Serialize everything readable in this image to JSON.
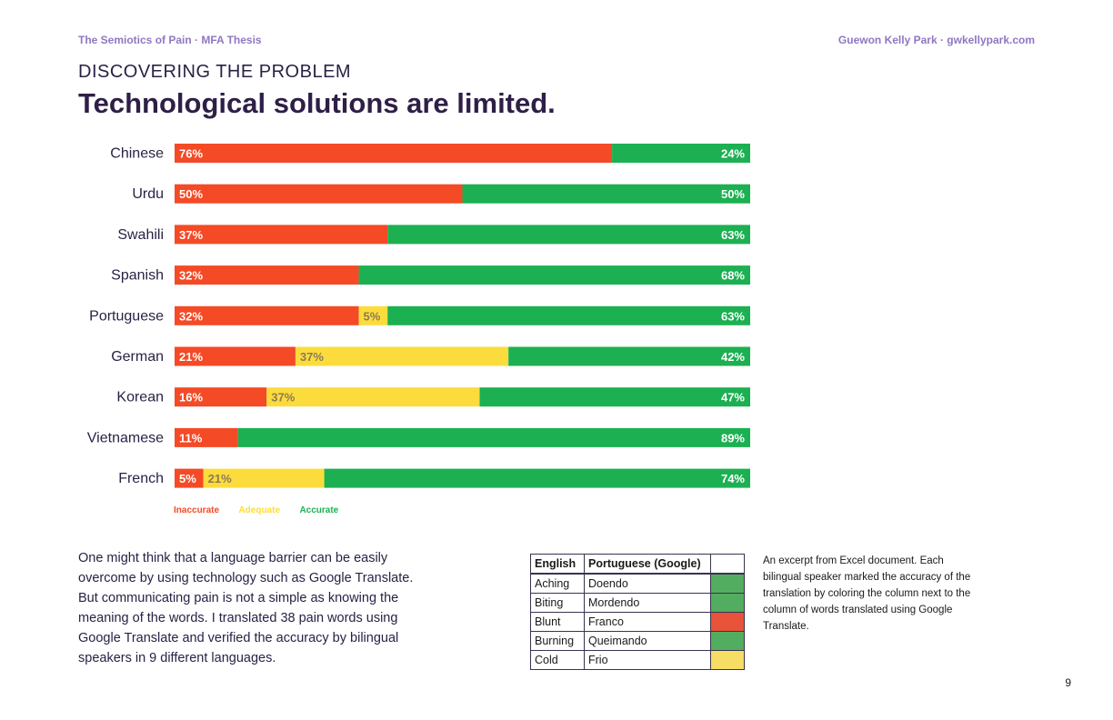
{
  "header": {
    "left": "The Semiotics of Pain · MFA Thesis",
    "right": "Guewon Kelly Park · gwkellypark.com"
  },
  "kicker": "DISCOVERING THE PROBLEM",
  "title": "Technological solutions are limited.",
  "colors": {
    "inaccurate": "#f44a26",
    "adequate": "#fcdc3c",
    "accurate": "#1cb052",
    "adequate_text": "#8a7a55",
    "cell_green": "#53ad60",
    "cell_red": "#e8533a",
    "cell_yellow": "#f6dd63"
  },
  "chart_data": {
    "type": "bar",
    "orientation": "horizontal",
    "stacked": true,
    "unit": "%",
    "categories": [
      "Chinese",
      "Urdu",
      "Swahili",
      "Spanish",
      "Portuguese",
      "German",
      "Korean",
      "Vietnamese",
      "French"
    ],
    "series": [
      {
        "name": "Inaccurate",
        "values": [
          76,
          50,
          37,
          32,
          32,
          21,
          16,
          11,
          5
        ]
      },
      {
        "name": "Adequate",
        "values": [
          0,
          0,
          0,
          0,
          5,
          37,
          37,
          0,
          21
        ]
      },
      {
        "name": "Accurate",
        "values": [
          24,
          50,
          63,
          68,
          63,
          42,
          47,
          89,
          74
        ]
      }
    ],
    "legend_position": "bottom-left"
  },
  "legend": {
    "inaccurate": "Inaccurate",
    "adequate": "Adequate",
    "accurate": "Accurate"
  },
  "body_text": "One might think that a language barrier can be easily overcome by using technology such as Google Translate. But communicating pain is not a simple as knowing the meaning of the words. I translated 38 pain words using Google Translate and verified the accuracy by bilingual speakers in 9 different languages.",
  "excerpt_table": {
    "headers": [
      "English",
      "Portuguese (Google)",
      ""
    ],
    "rows": [
      {
        "english": "Aching",
        "portuguese": "Doendo",
        "mark": "accurate"
      },
      {
        "english": "Biting",
        "portuguese": "Mordendo",
        "mark": "accurate"
      },
      {
        "english": "Blunt",
        "portuguese": "Franco",
        "mark": "inaccurate"
      },
      {
        "english": "Burning",
        "portuguese": "Queimando",
        "mark": "accurate"
      },
      {
        "english": "Cold",
        "portuguese": "Frio",
        "mark": "adequate"
      }
    ]
  },
  "caption": "An excerpt from Excel document. Each bilingual speaker marked the accuracy of the translation by coloring the column next to the column of words translated using Google Translate.",
  "page_number": "9"
}
